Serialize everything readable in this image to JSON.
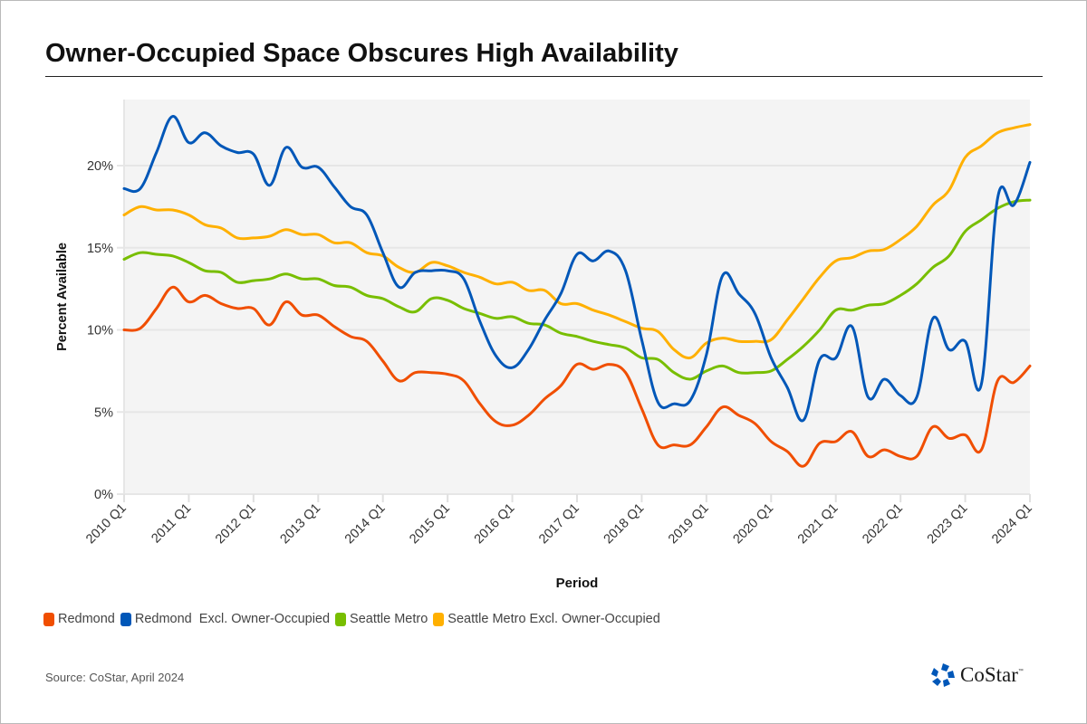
{
  "title": "Owner-Occupied Space Obscures High Availability",
  "source": "Source: CoStar, April 2024",
  "logo": {
    "text": "CoStar",
    "trademark": "™",
    "icon": "costar-star-icon"
  },
  "chart_data": {
    "type": "line",
    "title": "Owner-Occupied Space Obscures High Availability",
    "xlabel": "Period",
    "ylabel": "Percent Available",
    "ylim": [
      0,
      24
    ],
    "yticks": [
      0,
      5,
      10,
      15,
      20
    ],
    "ytick_labels": [
      "0%",
      "5%",
      "10%",
      "15%",
      "20%"
    ],
    "xtick_labels": [
      "2010 Q1",
      "2011 Q1",
      "2012 Q1",
      "2013 Q1",
      "2014 Q1",
      "2015 Q1",
      "2016 Q1",
      "2017 Q1",
      "2018 Q1",
      "2019 Q1",
      "2020 Q1",
      "2021 Q1",
      "2022 Q1",
      "2023 Q1",
      "2024 Q1"
    ],
    "x_range": [
      "2010 Q1",
      "2024 Q1"
    ],
    "x_frequency": "quarterly",
    "grid": "horizontal",
    "legend_position": "bottom-left",
    "series": [
      {
        "name": "Redmond",
        "color": "#F04E00",
        "values": [
          10.0,
          10.1,
          11.3,
          12.6,
          11.7,
          12.1,
          11.6,
          11.3,
          11.3,
          10.3,
          11.7,
          10.9,
          10.9,
          10.2,
          9.6,
          9.3,
          8.1,
          6.9,
          7.4,
          7.4,
          7.3,
          6.9,
          5.5,
          4.4,
          4.2,
          4.8,
          5.8,
          6.6,
          7.9,
          7.6,
          7.9,
          7.4,
          5.2,
          3.0,
          3.0,
          3.0,
          4.1,
          5.3,
          4.8,
          4.3,
          3.2,
          2.6,
          1.7,
          3.1,
          3.2,
          3.8,
          2.3,
          2.7,
          2.3,
          2.3,
          4.1,
          3.4,
          3.6,
          2.7,
          6.9,
          6.8,
          7.8
        ]
      },
      {
        "name": "Redmond  Excl. Owner-Occupied",
        "color": "#0057B8",
        "values": [
          18.6,
          18.6,
          20.8,
          23.0,
          21.4,
          22.0,
          21.2,
          20.8,
          20.7,
          18.8,
          21.1,
          19.9,
          19.9,
          18.7,
          17.5,
          17.0,
          14.7,
          12.6,
          13.5,
          13.6,
          13.6,
          13.1,
          10.5,
          8.4,
          7.7,
          8.8,
          10.6,
          12.2,
          14.6,
          14.2,
          14.8,
          13.6,
          9.4,
          5.6,
          5.5,
          5.7,
          8.5,
          13.3,
          12.2,
          11.0,
          8.3,
          6.5,
          4.5,
          8.2,
          8.3,
          10.2,
          5.9,
          7.0,
          6.0,
          5.9,
          10.7,
          8.8,
          9.3,
          6.7,
          18.0,
          17.6,
          20.2
        ]
      },
      {
        "name": "Seattle Metro",
        "color": "#78BE00",
        "values": [
          14.3,
          14.7,
          14.6,
          14.5,
          14.1,
          13.6,
          13.5,
          12.9,
          13.0,
          13.1,
          13.4,
          13.1,
          13.1,
          12.7,
          12.6,
          12.1,
          11.9,
          11.4,
          11.1,
          11.9,
          11.8,
          11.3,
          11.0,
          10.7,
          10.8,
          10.4,
          10.3,
          9.8,
          9.6,
          9.3,
          9.1,
          8.9,
          8.3,
          8.2,
          7.4,
          7.0,
          7.5,
          7.8,
          7.4,
          7.4,
          7.5,
          8.2,
          9.0,
          10.0,
          11.2,
          11.2,
          11.5,
          11.6,
          12.1,
          12.8,
          13.8,
          14.5,
          16.0,
          16.7,
          17.4,
          17.8,
          17.9
        ]
      },
      {
        "name": "Seattle Metro Excl. Owner-Occupied",
        "color": "#FFB000",
        "values": [
          17.0,
          17.5,
          17.3,
          17.3,
          17.0,
          16.4,
          16.2,
          15.6,
          15.6,
          15.7,
          16.1,
          15.8,
          15.8,
          15.3,
          15.3,
          14.7,
          14.5,
          13.8,
          13.5,
          14.1,
          13.9,
          13.5,
          13.2,
          12.8,
          12.9,
          12.4,
          12.4,
          11.6,
          11.6,
          11.2,
          10.9,
          10.5,
          10.1,
          9.9,
          8.8,
          8.3,
          9.2,
          9.5,
          9.3,
          9.3,
          9.4,
          10.6,
          11.9,
          13.2,
          14.2,
          14.4,
          14.8,
          14.9,
          15.5,
          16.3,
          17.6,
          18.5,
          20.5,
          21.2,
          22.0,
          22.3,
          22.5
        ]
      }
    ]
  }
}
